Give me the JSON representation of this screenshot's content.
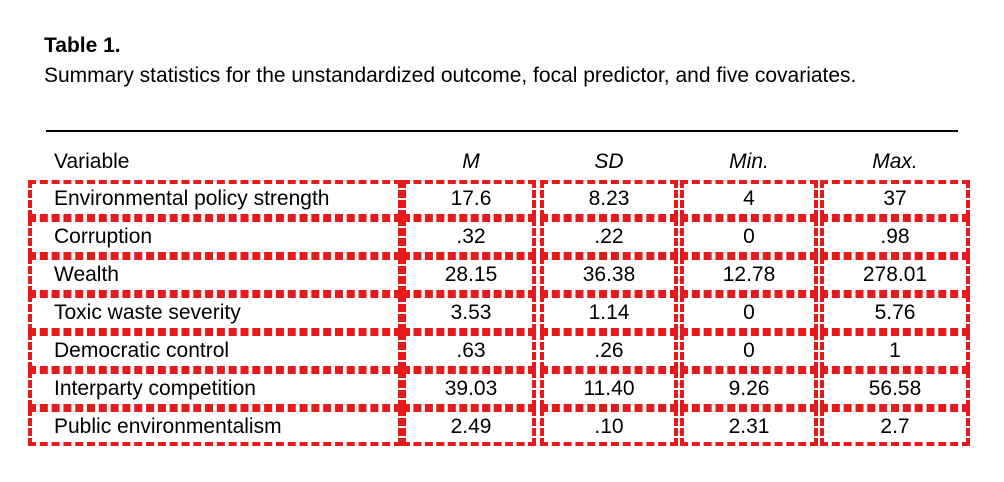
{
  "table": {
    "title": "Table 1.",
    "caption": "Summary statistics for the unstandardized outcome, focal predictor, and five covariates.",
    "headers": [
      "Variable",
      "M",
      "SD",
      "Min.",
      "Max."
    ],
    "rows": [
      {
        "variable": "Environmental policy strength",
        "m": "17.6",
        "sd": "8.23",
        "min": "4",
        "max": "37"
      },
      {
        "variable": "Corruption",
        "m": ".32",
        "sd": ".22",
        "min": "0",
        "max": ".98"
      },
      {
        "variable": "Wealth",
        "m": "28.15",
        "sd": "36.38",
        "min": "12.78",
        "max": "278.01"
      },
      {
        "variable": "Toxic waste severity",
        "m": "3.53",
        "sd": "1.14",
        "min": "0",
        "max": "5.76"
      },
      {
        "variable": "Democratic control",
        "m": ".63",
        "sd": ".26",
        "min": "0",
        "max": "1"
      },
      {
        "variable": "Interparty competition",
        "m": "39.03",
        "sd": "11.40",
        "min": "9.26",
        "max": "56.58"
      },
      {
        "variable": "Public environmentalism",
        "m": "2.49",
        "sd": ".10",
        "min": "2.31",
        "max": "2.7"
      }
    ]
  },
  "highlight_color": "#e8191b"
}
